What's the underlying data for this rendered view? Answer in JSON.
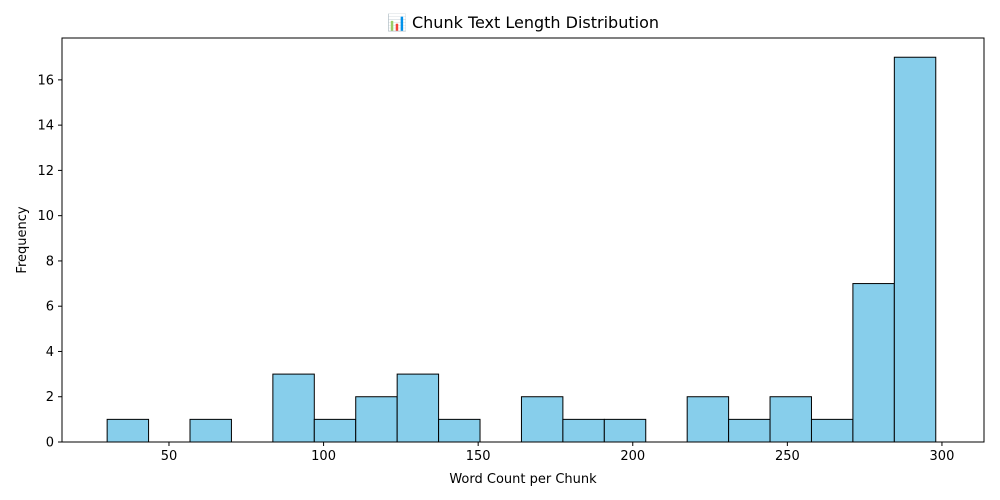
{
  "chart_data": {
    "type": "bar",
    "title": "📊 Chunk Text Length Distribution",
    "xlabel": "Word Count per Chunk",
    "ylabel": "Frequency",
    "xlim": [
      15.4,
      313.6
    ],
    "ylim": [
      0,
      17.85
    ],
    "xticks": [
      50,
      100,
      150,
      200,
      250,
      300
    ],
    "yticks": [
      0,
      2,
      4,
      6,
      8,
      10,
      12,
      14,
      16
    ],
    "grid": false,
    "bar_color": "#87ceeb",
    "edge_color": "#000000",
    "bins": [
      {
        "x0": 30.0,
        "x1": 43.4,
        "count": 1
      },
      {
        "x0": 43.4,
        "x1": 56.8,
        "count": 0
      },
      {
        "x0": 56.8,
        "x1": 70.2,
        "count": 1
      },
      {
        "x0": 70.2,
        "x1": 83.6,
        "count": 0
      },
      {
        "x0": 83.6,
        "x1": 97.0,
        "count": 3
      },
      {
        "x0": 97.0,
        "x1": 110.4,
        "count": 1
      },
      {
        "x0": 110.4,
        "x1": 123.8,
        "count": 2
      },
      {
        "x0": 123.8,
        "x1": 137.2,
        "count": 3
      },
      {
        "x0": 137.2,
        "x1": 150.6,
        "count": 1
      },
      {
        "x0": 150.6,
        "x1": 164.0,
        "count": 0
      },
      {
        "x0": 164.0,
        "x1": 177.4,
        "count": 2
      },
      {
        "x0": 177.4,
        "x1": 190.8,
        "count": 1
      },
      {
        "x0": 190.8,
        "x1": 204.2,
        "count": 1
      },
      {
        "x0": 204.2,
        "x1": 217.6,
        "count": 0
      },
      {
        "x0": 217.6,
        "x1": 231.0,
        "count": 2
      },
      {
        "x0": 231.0,
        "x1": 244.4,
        "count": 1
      },
      {
        "x0": 244.4,
        "x1": 257.8,
        "count": 2
      },
      {
        "x0": 257.8,
        "x1": 271.2,
        "count": 1
      },
      {
        "x0": 271.2,
        "x1": 284.6,
        "count": 7
      },
      {
        "x0": 284.6,
        "x1": 298.0,
        "count": 17
      }
    ]
  }
}
